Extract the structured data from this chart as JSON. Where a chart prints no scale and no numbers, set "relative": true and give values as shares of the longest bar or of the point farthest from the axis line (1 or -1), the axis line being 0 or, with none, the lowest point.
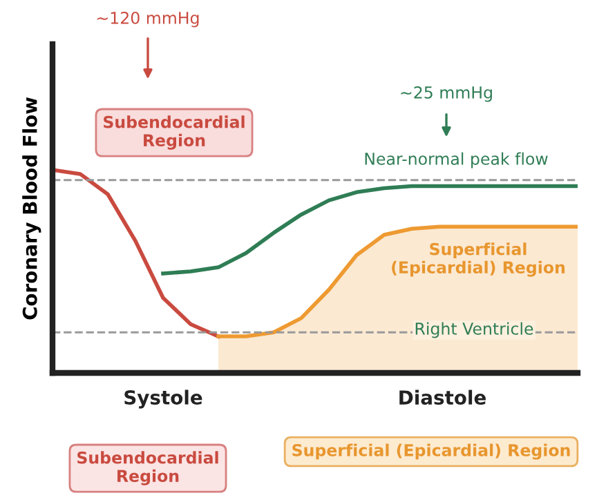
{
  "chart_data": {
    "type": "line",
    "relative": true,
    "ylabel": "Coronary Blood Flow",
    "categories": [
      null,
      null,
      null,
      null,
      null,
      null,
      null,
      null,
      null,
      null,
      null,
      null,
      null,
      null,
      null,
      null,
      null,
      null,
      null,
      null
    ],
    "series": [
      {
        "color": "#c94a3f",
        "values": [
          1.0,
          0.98,
          0.88,
          0.65,
          0.37,
          0.24,
          0.18,
          null,
          null,
          null,
          null,
          null,
          null,
          null,
          null,
          null,
          null,
          null,
          null,
          null
        ]
      },
      {
        "type": "area",
        "color": "#ee9a32",
        "values": [
          null,
          null,
          null,
          null,
          null,
          null,
          0.18,
          0.18,
          0.2,
          0.27,
          0.41,
          0.58,
          0.68,
          0.71,
          0.72,
          0.72,
          0.72,
          0.72,
          0.72,
          0.72
        ]
      },
      {
        "color": "#2f7d55",
        "values": [
          null,
          null,
          null,
          null,
          0.49,
          0.5,
          0.52,
          0.59,
          0.69,
          0.78,
          0.85,
          0.89,
          0.91,
          0.92,
          0.92,
          0.92,
          0.92,
          0.92,
          0.92,
          0.92
        ]
      }
    ],
    "ref_lines": [
      {
        "axis": "y",
        "value": 0.95,
        "label": "Near-normal peak flow",
        "color": "#999999",
        "line_style": "dashed"
      },
      {
        "axis": "y",
        "value": 0.2,
        "label": "Right Ventricle",
        "color": "#999999",
        "line_style": "dashed"
      }
    ],
    "annotations": [
      "~120 mmHg",
      "Subendocardial\nRegion",
      "~25 mmHg",
      "Superficial\n(Epicardial) Region",
      "Systole",
      "Diastole",
      "Subendocardial\nRegion",
      "Superficial (Epicardial) Region"
    ],
    "marker": "none",
    "line_style": "solid"
  }
}
